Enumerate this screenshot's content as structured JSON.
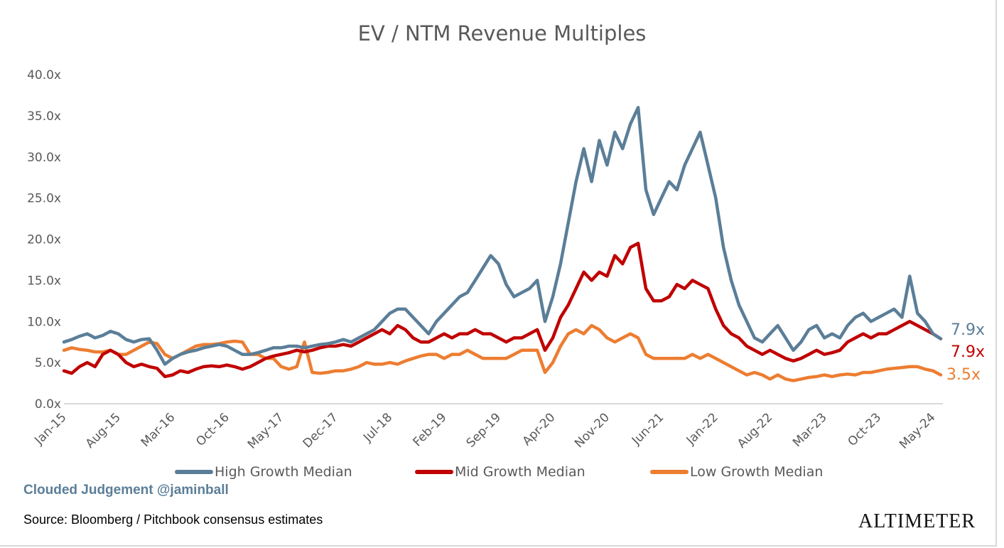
{
  "chart_data": {
    "type": "line",
    "title": "EV / NTM Revenue Multiples",
    "ylim": [
      0,
      40
    ],
    "yticks": [
      "0.0x",
      "5.0x",
      "10.0x",
      "15.0x",
      "20.0x",
      "25.0x",
      "30.0x",
      "35.0x",
      "40.0x"
    ],
    "xticks": [
      "Jan-15",
      "Aug-15",
      "Mar-16",
      "Oct-16",
      "May-17",
      "Dec-17",
      "Jul-18",
      "Feb-19",
      "Sep-19",
      "Apr-20",
      "Nov-20",
      "Jun-21",
      "Jan-22",
      "Aug-22",
      "Mar-23",
      "Oct-23",
      "May-24"
    ],
    "x_start": "2015-01",
    "x_frequency": "monthly",
    "grid": false,
    "legend": "bottom",
    "series": [
      {
        "name": "High Growth Median",
        "color": "#5b7e98",
        "end_label": "7.9x",
        "values": [
          7.5,
          7.8,
          8.2,
          8.5,
          8.0,
          8.3,
          8.8,
          8.5,
          7.8,
          7.5,
          7.8,
          7.9,
          6.5,
          4.8,
          5.5,
          6.0,
          6.3,
          6.5,
          6.8,
          7.0,
          7.2,
          7.0,
          6.5,
          6.0,
          6.0,
          6.2,
          6.5,
          6.8,
          6.8,
          7.0,
          7.0,
          6.8,
          7.0,
          7.2,
          7.3,
          7.5,
          7.8,
          7.5,
          8.0,
          8.5,
          9.0,
          10.0,
          11.0,
          11.5,
          11.5,
          10.5,
          9.5,
          8.5,
          10.0,
          11.0,
          12.0,
          13.0,
          13.5,
          15.0,
          16.5,
          18.0,
          17.0,
          14.5,
          13.0,
          13.5,
          14.0,
          15.0,
          10.0,
          13.0,
          17.0,
          22.0,
          27.0,
          31.0,
          27.0,
          32.0,
          29.0,
          33.0,
          31.0,
          34.0,
          36.0,
          26.0,
          23.0,
          25.0,
          27.0,
          26.0,
          29.0,
          31.0,
          33.0,
          29.0,
          25.0,
          19.0,
          15.0,
          12.0,
          10.0,
          8.0,
          7.5,
          8.5,
          9.5,
          8.0,
          6.5,
          7.5,
          9.0,
          9.5,
          8.0,
          8.5,
          8.0,
          9.5,
          10.5,
          11.0,
          10.0,
          10.5,
          11.0,
          11.5,
          10.5,
          15.5,
          11.0,
          10.0,
          8.5,
          7.9
        ]
      },
      {
        "name": "Mid Growth Median",
        "color": "#c00000",
        "end_label": "7.9x",
        "values": [
          4.0,
          3.7,
          4.5,
          5.0,
          4.5,
          6.0,
          6.5,
          6.0,
          5.0,
          4.5,
          4.8,
          4.5,
          4.3,
          3.3,
          3.5,
          4.0,
          3.8,
          4.2,
          4.5,
          4.6,
          4.5,
          4.7,
          4.5,
          4.2,
          4.5,
          5.0,
          5.5,
          5.8,
          6.0,
          6.2,
          6.5,
          6.3,
          6.5,
          6.8,
          7.0,
          7.0,
          7.2,
          7.0,
          7.5,
          8.0,
          8.5,
          9.0,
          8.5,
          9.5,
          9.0,
          8.0,
          7.5,
          7.5,
          8.0,
          8.5,
          8.0,
          8.5,
          8.5,
          9.0,
          8.5,
          8.5,
          8.0,
          7.5,
          8.0,
          8.0,
          8.5,
          9.0,
          6.5,
          8.0,
          10.5,
          12.0,
          14.0,
          16.0,
          15.0,
          16.0,
          15.5,
          18.0,
          17.0,
          19.0,
          19.5,
          14.0,
          12.5,
          12.5,
          13.0,
          14.5,
          14.0,
          15.0,
          14.5,
          14.0,
          11.5,
          9.5,
          8.5,
          8.0,
          7.0,
          6.5,
          6.0,
          6.5,
          6.0,
          5.5,
          5.2,
          5.5,
          6.0,
          6.5,
          6.0,
          6.2,
          6.5,
          7.5,
          8.0,
          8.5,
          8.0,
          8.5,
          8.5,
          9.0,
          9.5,
          10.0,
          9.5,
          9.0,
          8.5,
          7.9
        ]
      },
      {
        "name": "Low Growth Median",
        "color": "#ed7d31",
        "end_label": "3.5x",
        "values": [
          6.5,
          6.8,
          6.6,
          6.5,
          6.3,
          6.3,
          6.5,
          6.0,
          6.0,
          6.5,
          7.0,
          7.5,
          7.3,
          6.0,
          5.5,
          6.0,
          6.5,
          7.0,
          7.2,
          7.2,
          7.3,
          7.5,
          7.6,
          7.5,
          6.0,
          6.0,
          5.5,
          5.5,
          4.5,
          4.2,
          4.5,
          7.5,
          3.8,
          3.7,
          3.8,
          4.0,
          4.0,
          4.2,
          4.5,
          5.0,
          4.8,
          4.8,
          5.0,
          4.8,
          5.2,
          5.5,
          5.8,
          6.0,
          6.0,
          5.5,
          6.0,
          6.0,
          6.5,
          6.0,
          5.5,
          5.5,
          5.5,
          5.5,
          6.0,
          6.5,
          6.5,
          6.5,
          3.8,
          5.0,
          7.0,
          8.5,
          9.0,
          8.5,
          9.5,
          9.0,
          8.0,
          7.5,
          8.0,
          8.5,
          8.0,
          6.0,
          5.5,
          5.5,
          5.5,
          5.5,
          5.5,
          6.0,
          5.5,
          6.0,
          5.5,
          5.0,
          4.5,
          4.0,
          3.5,
          3.8,
          3.5,
          3.0,
          3.5,
          3.0,
          2.8,
          3.0,
          3.2,
          3.3,
          3.5,
          3.3,
          3.5,
          3.6,
          3.5,
          3.8,
          3.8,
          4.0,
          4.2,
          4.3,
          4.4,
          4.5,
          4.5,
          4.2,
          4.0,
          3.5
        ]
      }
    ]
  },
  "footer": {
    "brand": "Clouded Judgement @jaminball",
    "source": "Source: Bloomberg / Pitchbook consensus estimates",
    "logo": "ALTIMETER"
  }
}
